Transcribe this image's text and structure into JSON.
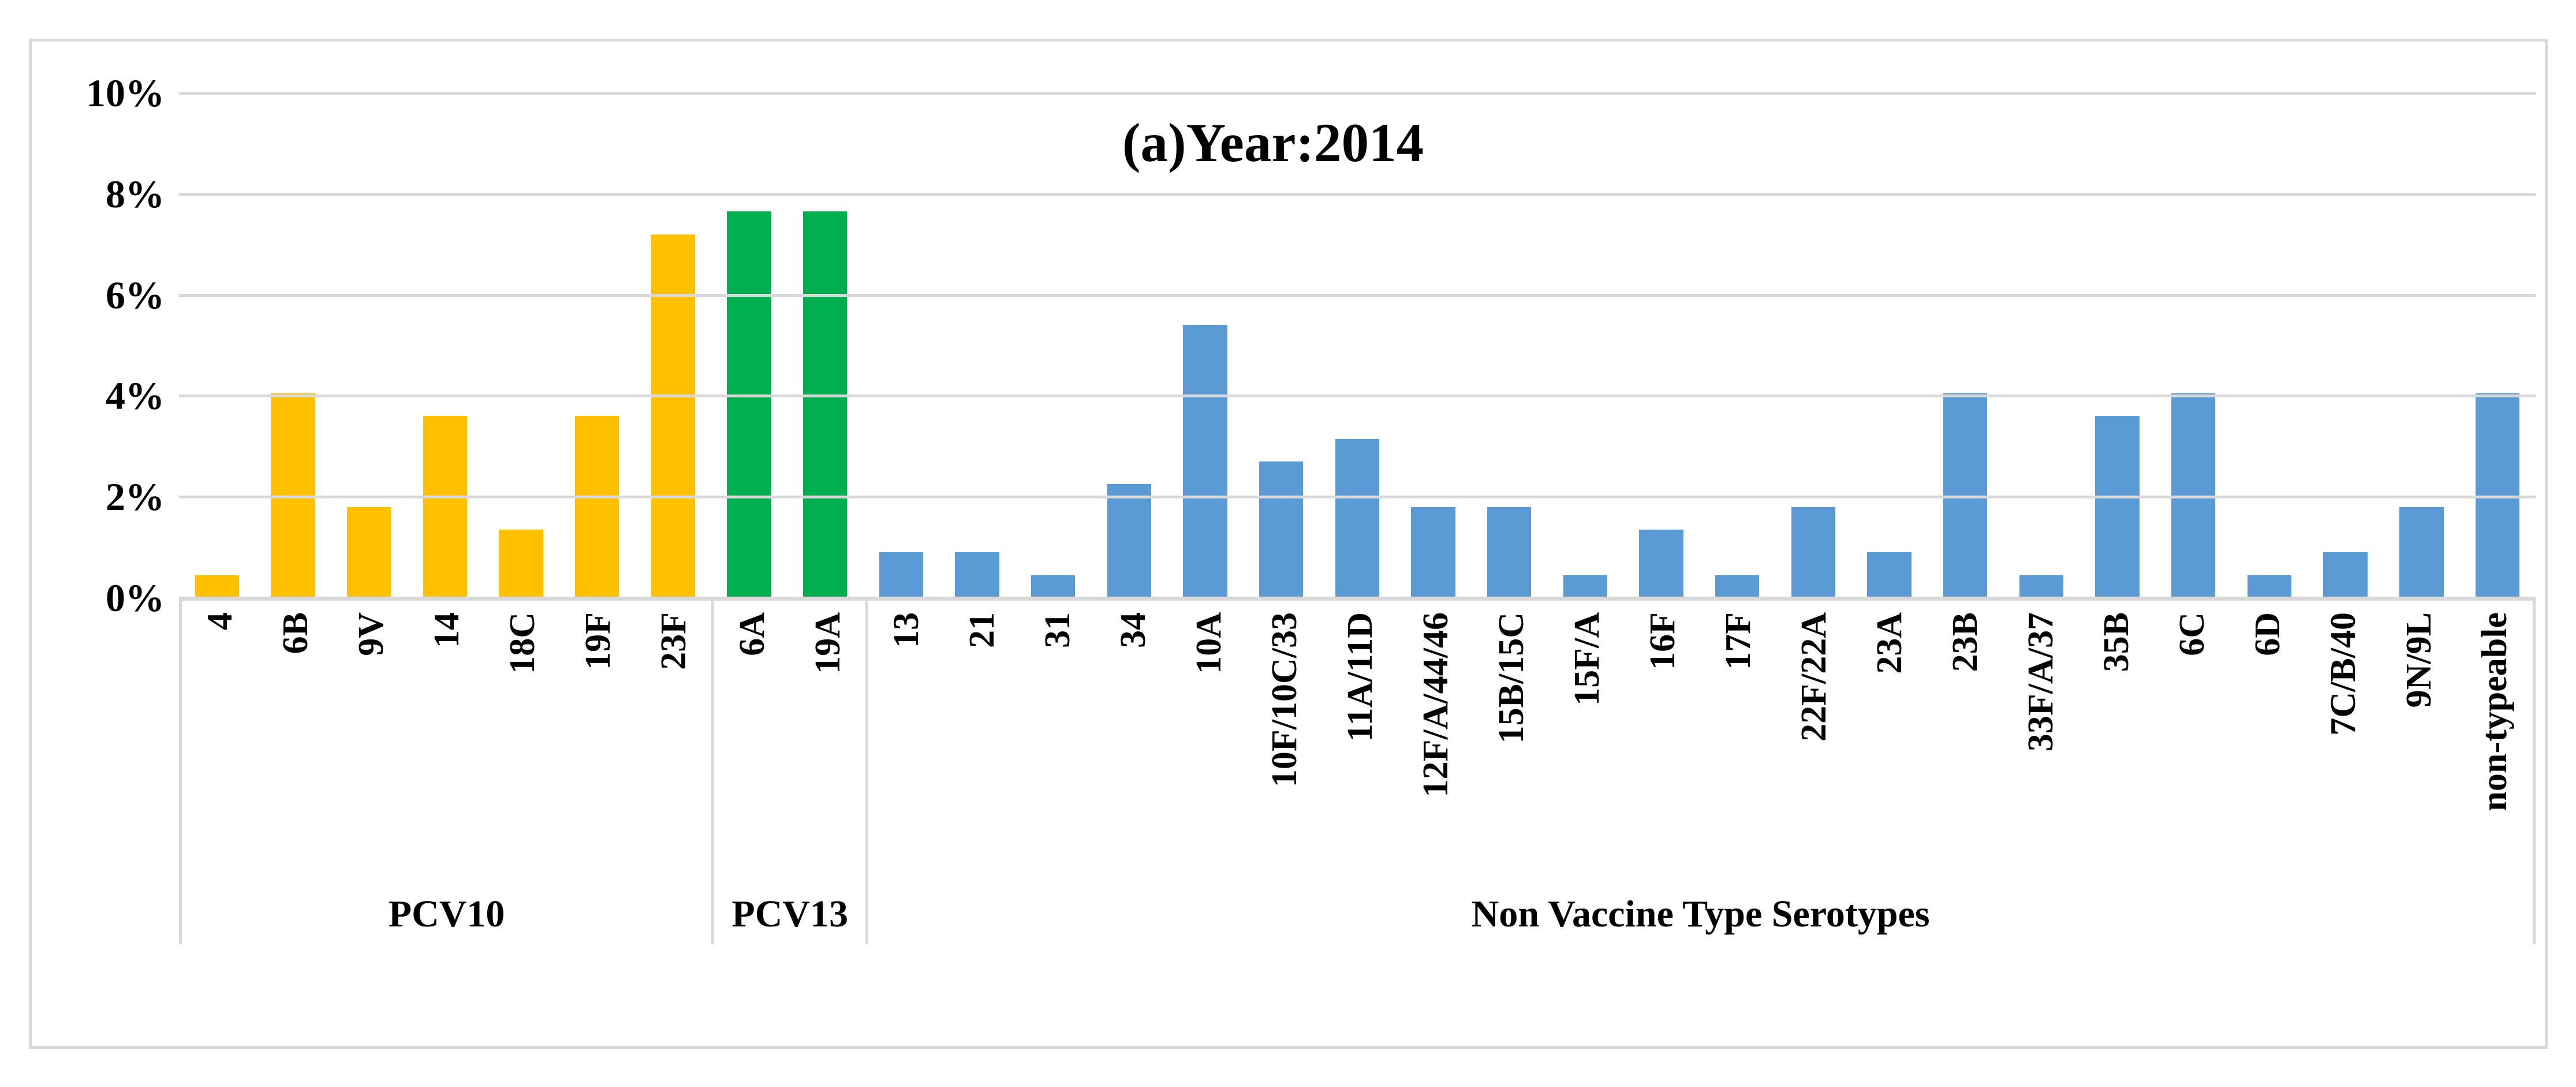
{
  "title": "(a)Year:2014",
  "y_axis": {
    "tick_labels": [
      "10%",
      "8%",
      "6%",
      "4%",
      "2%",
      "0%"
    ],
    "min": 0,
    "max": 10,
    "unit": "%"
  },
  "colors": {
    "pcv10": "#FFC000",
    "pcv13": "#00B050",
    "non_vaccine": "#5B9BD5",
    "gridline": "#D9D9D9",
    "panel_border": "#D9D9D9",
    "text": "#000000"
  },
  "chart_data": {
    "type": "bar",
    "title": "(a)Year:2014",
    "ylabel": "",
    "xlabel": "",
    "ylim": [
      0,
      10
    ],
    "y_tick_labels": [
      "10%",
      "8%",
      "6%",
      "4%",
      "2%",
      "0%"
    ],
    "grid": true,
    "legend": "none",
    "groups": [
      {
        "label": "PCV10",
        "color": "#FFC000",
        "categories": [
          "4",
          "6B",
          "9V",
          "14",
          "18C",
          "19F",
          "23F"
        ],
        "values": [
          0.45,
          4.05,
          1.8,
          3.6,
          1.35,
          3.6,
          7.2
        ]
      },
      {
        "label": "PCV13",
        "color": "#00B050",
        "categories": [
          "6A",
          "19A"
        ],
        "values": [
          7.65,
          7.65
        ]
      },
      {
        "label": "Non Vaccine Type Serotypes",
        "color": "#5B9BD5",
        "categories": [
          "13",
          "21",
          "31",
          "34",
          "10A",
          "10F/10C/33",
          "11A/11D",
          "12F/A/44/46",
          "15B/15C",
          "15F/A",
          "16F",
          "17F",
          "22F/22A",
          "23A",
          "23B",
          "33F/A/37",
          "35B",
          "6C",
          "6D",
          "7C/B/40",
          "9N/9L",
          "non-typeable"
        ],
        "values": [
          0.9,
          0.9,
          0.45,
          2.25,
          5.4,
          2.7,
          3.15,
          1.8,
          1.8,
          0.45,
          1.35,
          0.45,
          1.8,
          0.9,
          4.05,
          0.45,
          3.6,
          4.05,
          0.45,
          0.9,
          1.8,
          4.05
        ]
      }
    ]
  }
}
